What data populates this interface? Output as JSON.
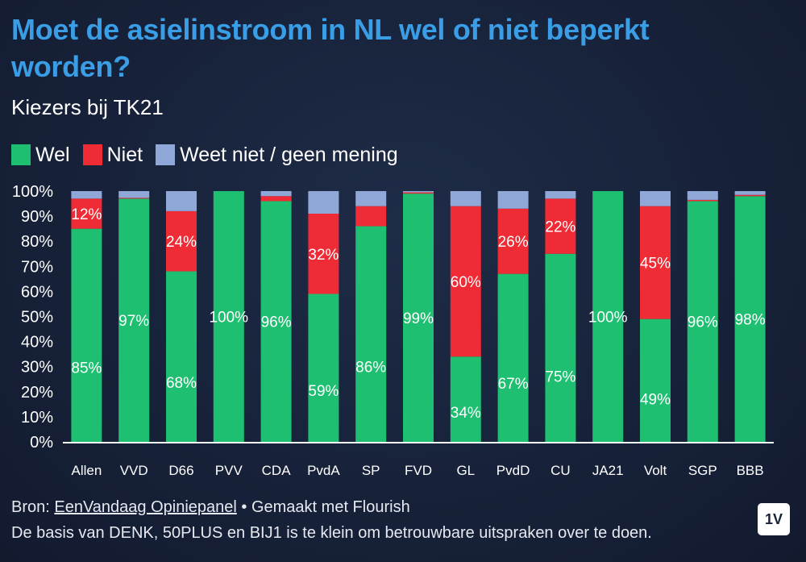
{
  "header": {
    "title": "Moet de asielinstroom in NL wel of niet beperkt worden?",
    "subtitle": "Kiezers bij TK21"
  },
  "footer": {
    "source_prefix": "Bron: ",
    "source_link": "EenVandaag Opiniepanel",
    "source_suffix": " • Gemaakt met Flourish",
    "note": "De basis van DENK, 50PLUS en BIJ1 is te klein om betrouwbare uitspraken over te doen."
  },
  "logo": {
    "text": "1V"
  },
  "chart_data": {
    "type": "bar",
    "stacked": true,
    "categories": [
      "Allen",
      "VVD",
      "D66",
      "PVV",
      "CDA",
      "PvdA",
      "SP",
      "FVD",
      "GL",
      "PvdD",
      "CU",
      "JA21",
      "Volt",
      "SGP",
      "BBB"
    ],
    "series": [
      {
        "name": "Wel",
        "color": "#1fbf72",
        "values": [
          85,
          97,
          68,
          100,
          96,
          59,
          86,
          99,
          34,
          67,
          75,
          100,
          49,
          96,
          98
        ],
        "labels": [
          "85%",
          "97%",
          "68%",
          "100%",
          "96%",
          "59%",
          "86%",
          "99%",
          "34%",
          "67%",
          "75%",
          "100%",
          "49%",
          "96%",
          "98%"
        ]
      },
      {
        "name": "Niet",
        "color": "#ef2b35",
        "values": [
          12,
          0.3,
          24,
          0,
          2,
          32,
          8,
          0.5,
          60,
          26,
          22,
          0,
          45,
          0.5,
          0.5
        ],
        "labels": [
          "12%",
          "",
          "24%",
          "",
          "",
          "32%",
          "",
          "",
          "60%",
          "26%",
          "22%",
          "",
          "45%",
          "",
          ""
        ]
      },
      {
        "name": "Weet niet / geen mening",
        "color": "#8fa8d8",
        "values": [
          3,
          2.7,
          8,
          0,
          2,
          9,
          6,
          0.5,
          6,
          7,
          3,
          0,
          6,
          3.5,
          1.5
        ],
        "labels": [
          "",
          "",
          "",
          "",
          "",
          "",
          "",
          "",
          "",
          "",
          "",
          "",
          "",
          "",
          ""
        ]
      }
    ],
    "ylim": [
      0,
      100
    ],
    "yticks": [
      "0%",
      "10%",
      "20%",
      "30%",
      "40%",
      "50%",
      "60%",
      "70%",
      "80%",
      "90%",
      "100%"
    ],
    "legend": "top-left",
    "grid": false
  }
}
